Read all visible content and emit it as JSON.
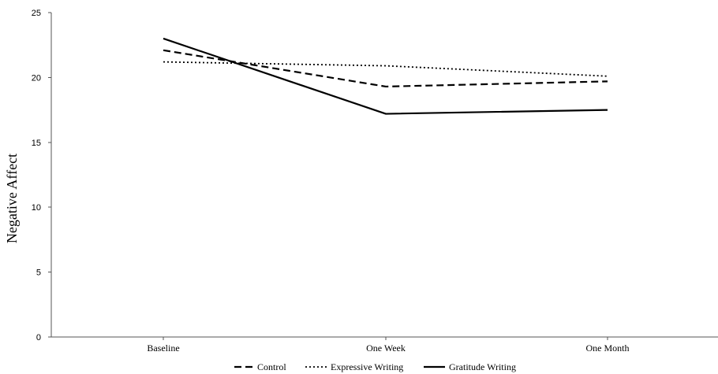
{
  "chart_data": {
    "type": "line",
    "title": "",
    "xlabel": "",
    "ylabel": "Negative Affect",
    "categories": [
      "Baseline",
      "One Week",
      "One Month"
    ],
    "ylim": [
      0,
      25
    ],
    "yticks": [
      0,
      5,
      10,
      15,
      20,
      25
    ],
    "grid": false,
    "legend_position": "bottom",
    "series": [
      {
        "name": "Control",
        "values": [
          22.1,
          19.3,
          19.7
        ],
        "style": "dashed",
        "color": "#000000"
      },
      {
        "name": "Expressive Writing",
        "values": [
          21.2,
          20.9,
          20.1
        ],
        "style": "dotted",
        "color": "#000000"
      },
      {
        "name": "Gratitude Writing",
        "values": [
          23.0,
          17.2,
          17.5
        ],
        "style": "solid",
        "color": "#000000"
      }
    ]
  }
}
